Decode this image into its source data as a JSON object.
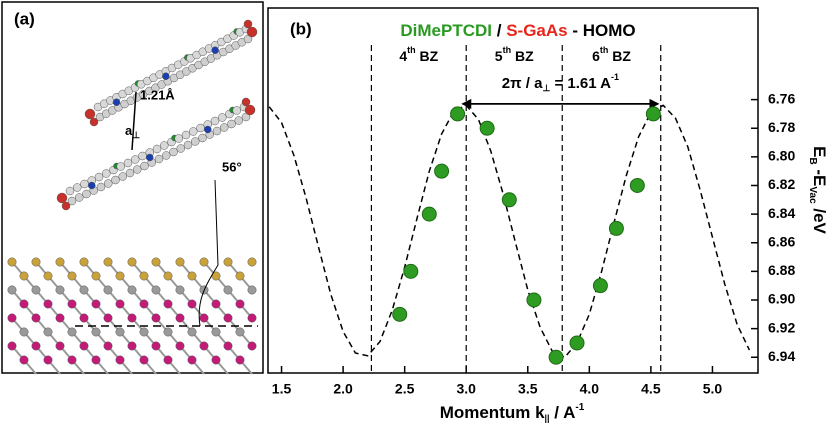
{
  "panel_a": {
    "label": "(a)",
    "distance": "1.21Å",
    "spacing": "a",
    "spacing_sub": "⊥",
    "angle": "56°"
  },
  "chart_data": {
    "type": "scatter",
    "panel_label": "(b)",
    "title": [
      "DiMePTCDI",
      " / ",
      "S-GaAs",
      " - HOMO"
    ],
    "title_colors": [
      "#2a9a22",
      "#000000",
      "#e8251b",
      "#000000"
    ],
    "x_label": [
      "Momentum k",
      "||",
      " / A",
      "-1"
    ],
    "y_label": [
      "E",
      "B",
      " -E",
      "Vac",
      " /eV"
    ],
    "xlim": [
      1.39,
      5.37
    ],
    "xticks": [
      1.5,
      {
        "value": 2.0,
        "label": "2.0"
      },
      2.5,
      {
        "value": 3.0,
        "label": "3.0"
      },
      3.5,
      {
        "value": 4.0,
        "label": "4.0"
      },
      4.5,
      {
        "value": 5.0,
        "label": "5.0"
      }
    ],
    "ylim": [
      6.951,
      6.696
    ],
    "yticks": [
      6.76,
      6.78,
      {
        "value": 6.8,
        "label": "6.80"
      },
      6.82,
      6.84,
      6.86,
      6.88,
      {
        "value": 6.9,
        "label": "6.90"
      },
      6.92,
      6.94
    ],
    "y_axis_side": "right",
    "zone_boundaries": [
      2.23,
      3.0,
      3.78,
      4.58
    ],
    "zone_labels": [
      {
        "number": "4",
        "suffix": "th",
        "text": " BZ"
      },
      {
        "number": "5",
        "suffix": "th",
        "text": " BZ"
      },
      {
        "number": "6",
        "suffix": "th",
        "text": " BZ"
      }
    ],
    "arrow": {
      "x": [
        2.96,
        4.57
      ],
      "y": 6.763,
      "label": [
        "2π / a",
        "⊥",
        " = 1.61 A",
        "-1"
      ]
    },
    "series": [
      {
        "type": "scatter",
        "color": "#2e9c22",
        "x": [
          2.46,
          2.55,
          2.7,
          2.8,
          2.93,
          3.17,
          3.35,
          3.55,
          3.73,
          3.9,
          4.09,
          4.22,
          4.39,
          4.52
        ],
        "values": [
          6.91,
          6.88,
          6.84,
          6.81,
          6.77,
          6.78,
          6.83,
          6.9,
          6.94,
          6.93,
          6.89,
          6.85,
          6.82,
          6.77
        ]
      },
      {
        "type": "line",
        "style": "dashed",
        "color": "#000000",
        "x": [
          1.4,
          1.5,
          1.6,
          1.7,
          1.8,
          1.9,
          2.0,
          2.1,
          2.2,
          2.3,
          2.4,
          2.5,
          2.6,
          2.7,
          2.8,
          2.9,
          3.0,
          3.1,
          3.2,
          3.3,
          3.4,
          3.5,
          3.6,
          3.7,
          3.8,
          3.9,
          4.0,
          4.1,
          4.2,
          4.3,
          4.4,
          4.5,
          4.6,
          4.7,
          4.8,
          4.9,
          5.0,
          5.1,
          5.2,
          5.3
        ],
        "values": [
          6.765,
          6.776,
          6.799,
          6.829,
          6.863,
          6.896,
          6.922,
          6.937,
          6.939,
          6.929,
          6.907,
          6.877,
          6.843,
          6.81,
          6.784,
          6.768,
          6.764,
          6.774,
          6.796,
          6.826,
          6.86,
          6.893,
          6.919,
          6.936,
          6.94,
          6.93,
          6.91,
          6.88,
          6.846,
          6.813,
          6.786,
          6.769,
          6.764,
          6.773,
          6.793,
          6.823,
          6.856,
          6.889,
          6.917,
          6.935
        ]
      }
    ]
  }
}
